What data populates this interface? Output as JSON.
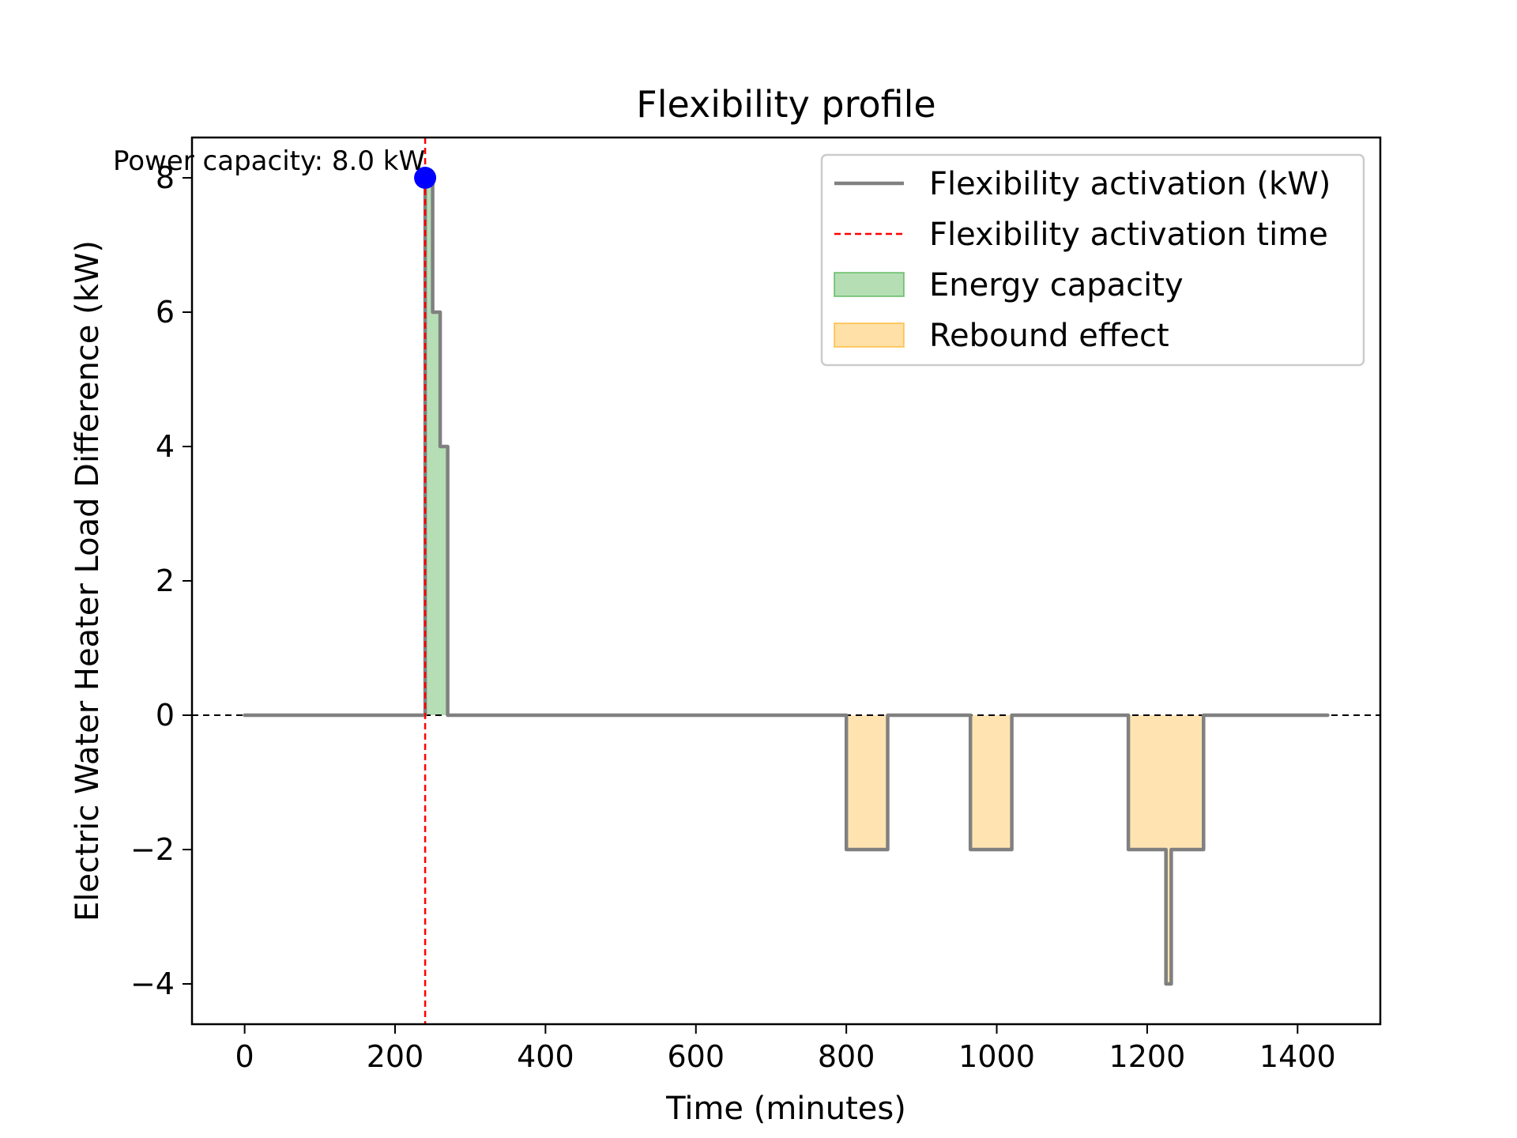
{
  "chart_data": {
    "type": "line",
    "title": "Flexibility profile",
    "xlabel": "Time (minutes)",
    "ylabel": "Electric Water Heater Load Difference (kW)",
    "xlim": [
      -70,
      1510
    ],
    "ylim": [
      -4.6,
      8.6
    ],
    "xticks": [
      0,
      200,
      400,
      600,
      800,
      1000,
      1200,
      1400
    ],
    "yticks": [
      -4,
      -2,
      0,
      2,
      4,
      6,
      8
    ],
    "xtick_labels": [
      "0",
      "200",
      "400",
      "600",
      "800",
      "1000",
      "1200",
      "1400"
    ],
    "ytick_labels": [
      "−4",
      "−2",
      "0",
      "2",
      "4",
      "6",
      "8"
    ],
    "grid": false,
    "legend_position": "top-right",
    "series": [
      {
        "name": "Flexibility activation (kW)",
        "kind": "step-line",
        "color": "#808080",
        "x": [
          0,
          240,
          240,
          250,
          250,
          260,
          260,
          270,
          270,
          800,
          800,
          855,
          855,
          965,
          965,
          1020,
          1020,
          1175,
          1175,
          1225,
          1225,
          1232,
          1232,
          1275,
          1275,
          1440
        ],
        "y": [
          0,
          0,
          8,
          8,
          6,
          6,
          4,
          4,
          0,
          0,
          -2,
          -2,
          0,
          0,
          -2,
          -2,
          0,
          0,
          -2,
          -2,
          -4,
          -4,
          -2,
          -2,
          0,
          0
        ]
      },
      {
        "name": "Flexibility activation time",
        "kind": "vline",
        "x": 240,
        "color": "#ff0000"
      },
      {
        "name": "Energy capacity",
        "kind": "fill",
        "color": "#2ca02c",
        "x": [
          240,
          250,
          250,
          260,
          260,
          270
        ],
        "y": [
          8,
          8,
          6,
          6,
          4,
          4
        ],
        "note_ignore": ""
      },
      {
        "name": "Rebound effect",
        "kind": "fill",
        "color": "#ffa500"
      }
    ],
    "reference_line": {
      "y": 0,
      "style": "dashed",
      "color": "#000000"
    },
    "annotation": {
      "text": "Power capacity: 8.0 kW",
      "x": 240,
      "y": 8,
      "marker_color": "#0000ff"
    }
  }
}
